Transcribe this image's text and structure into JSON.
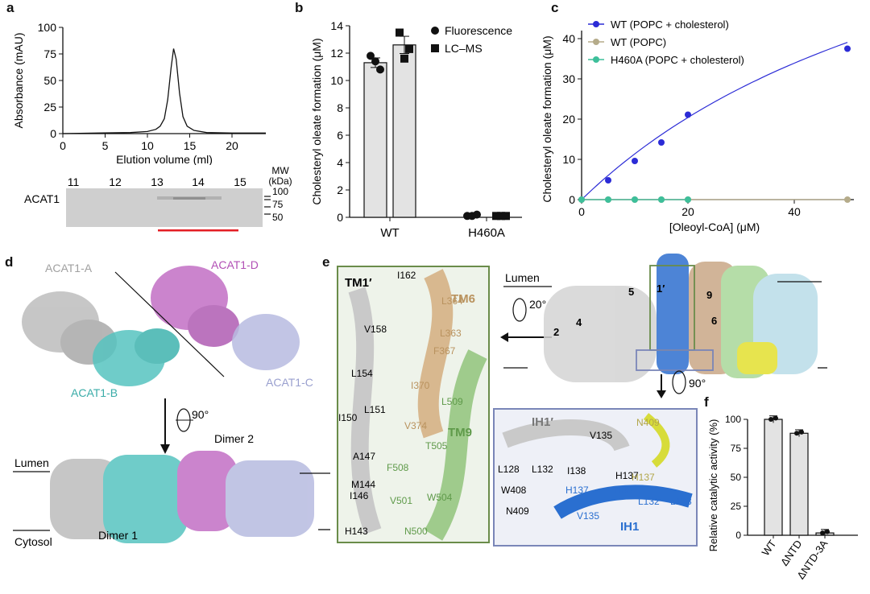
{
  "panel_labels": {
    "a": "a",
    "b": "b",
    "c": "c",
    "d": "d",
    "e": "e",
    "f": "f"
  },
  "panel_a": {
    "gel_lane_labels": [
      "11",
      "12",
      "13",
      "14",
      "15"
    ],
    "gel_row_label": "ACAT1",
    "mw_header": "MW",
    "mw_unit": "(kDa)",
    "mw_markers": [
      "100",
      "75",
      "50"
    ]
  },
  "panel_d": {
    "labels": {
      "a": "ACAT1-A",
      "b": "ACAT1-B",
      "c": "ACAT1-C",
      "d": "ACAT1-D",
      "rotation": "90°",
      "dimer1": "Dimer 1",
      "dimer2": "Dimer 2",
      "lumen": "Lumen",
      "cytosol": "Cytosol"
    }
  },
  "panel_e": {
    "inset_left_labels": [
      "TM1′",
      "I162",
      "L364",
      "TM6",
      "V158",
      "L363",
      "F367",
      "L154",
      "I370",
      "L509",
      "L151",
      "I150",
      "V374",
      "TM9",
      "T505",
      "A147",
      "F508",
      "M144",
      "I146",
      "V501",
      "W504",
      "H143",
      "N500"
    ],
    "top_labels": {
      "lumen": "Lumen",
      "rotation": "20°",
      "rotation2": "90°",
      "helix_numbers": [
        "1′",
        "2",
        "4",
        "5",
        "6",
        "9"
      ]
    },
    "inset_bottom_labels": [
      "IH1′",
      "V135",
      "N409",
      "L128",
      "L132",
      "I138",
      "H137",
      "W408",
      "H137",
      "I138",
      "L132",
      "L128",
      "N409",
      "V135",
      "IH1"
    ]
  },
  "colors": {
    "wt_chol": "#2b2bd6",
    "wt_popc": "#b5ab8a",
    "h460a": "#3dbf9a",
    "bar_fill": "#e3e3e3",
    "gel_bg": "#cfcfcf",
    "red_bar": "#e31e24",
    "acat_a": "#bdbdbd",
    "acat_b": "#56c4c0",
    "acat_c": "#b7bbe0",
    "acat_d": "#c36fc5",
    "inset_left_border": "#6a8c4a",
    "inset_bottom_border": "#7a86b8"
  },
  "chart_data": [
    {
      "panel": "a",
      "type": "line",
      "xlabel": "Elution volume (ml)",
      "ylabel": "Absorbance (mAU)",
      "xlim": [
        0,
        24
      ],
      "ylim": [
        0,
        100
      ],
      "xticks": [
        0,
        5,
        10,
        15,
        20
      ],
      "yticks": [
        0,
        25,
        50,
        75,
        100
      ],
      "series": [
        {
          "x": [
            0,
            4,
            8,
            10,
            11,
            11.5,
            12,
            12.4,
            12.8,
            13.1,
            13.4,
            13.8,
            14.2,
            14.7,
            15.5,
            17,
            20,
            24
          ],
          "y": [
            0,
            0.5,
            1,
            2,
            4,
            7,
            14,
            32,
            62,
            80,
            70,
            38,
            16,
            7,
            3,
            1,
            0.5,
            0.5
          ]
        }
      ]
    },
    {
      "panel": "b",
      "type": "bar",
      "xlabel": "",
      "ylabel": "Cholesteryl oleate formation (μM)",
      "categories": [
        "WT",
        "H460A"
      ],
      "ylim": [
        0,
        14
      ],
      "yticks": [
        0,
        2,
        4,
        6,
        8,
        10,
        12,
        14
      ],
      "series": [
        {
          "name": "Fluorescence",
          "marker": "circle",
          "values": [
            11.3,
            0.15
          ],
          "points": [
            [
              11.8,
              10.8,
              11.4
            ],
            [
              0.1,
              0.2,
              0.1
            ]
          ]
        },
        {
          "name": "LC–MS",
          "marker": "square",
          "values": [
            12.6,
            0.1
          ],
          "points": [
            [
              13.5,
              12.3,
              11.6
            ],
            [
              0.1,
              0.1,
              0.1
            ]
          ]
        }
      ]
    },
    {
      "panel": "c",
      "type": "scatter",
      "xlabel": "[Oleoyl-CoA] (μM)",
      "ylabel": "Cholesteryl oleate formation (μM)",
      "xlim": [
        0,
        50
      ],
      "ylim": [
        0,
        40
      ],
      "xticks": [
        0,
        20,
        40
      ],
      "yticks": [
        0,
        10,
        20,
        30,
        40
      ],
      "legend": "top-left",
      "series": [
        {
          "name": "WT (POPC + cholesterol)",
          "x": [
            5,
            10,
            15,
            20,
            50
          ],
          "y": [
            4.8,
            9.6,
            14.2,
            21.1,
            37.5
          ]
        },
        {
          "name": "WT (POPC)",
          "x": [
            0,
            5,
            10,
            15,
            20,
            50
          ],
          "y": [
            0,
            0,
            0,
            0,
            0,
            0
          ]
        },
        {
          "name": "H460A (POPC + cholesterol)",
          "x": [
            0,
            5,
            10,
            15,
            20
          ],
          "y": [
            0,
            0,
            0,
            0,
            0
          ]
        }
      ]
    },
    {
      "panel": "f",
      "type": "bar",
      "xlabel": "",
      "ylabel": "Relative catalytic activity (%)",
      "categories": [
        "WT",
        "ΔNTD",
        "ΔNTD-3A"
      ],
      "values": [
        100,
        88,
        2
      ],
      "ylim": [
        0,
        100
      ],
      "yticks": [
        0,
        25,
        50,
        75,
        100
      ]
    }
  ]
}
